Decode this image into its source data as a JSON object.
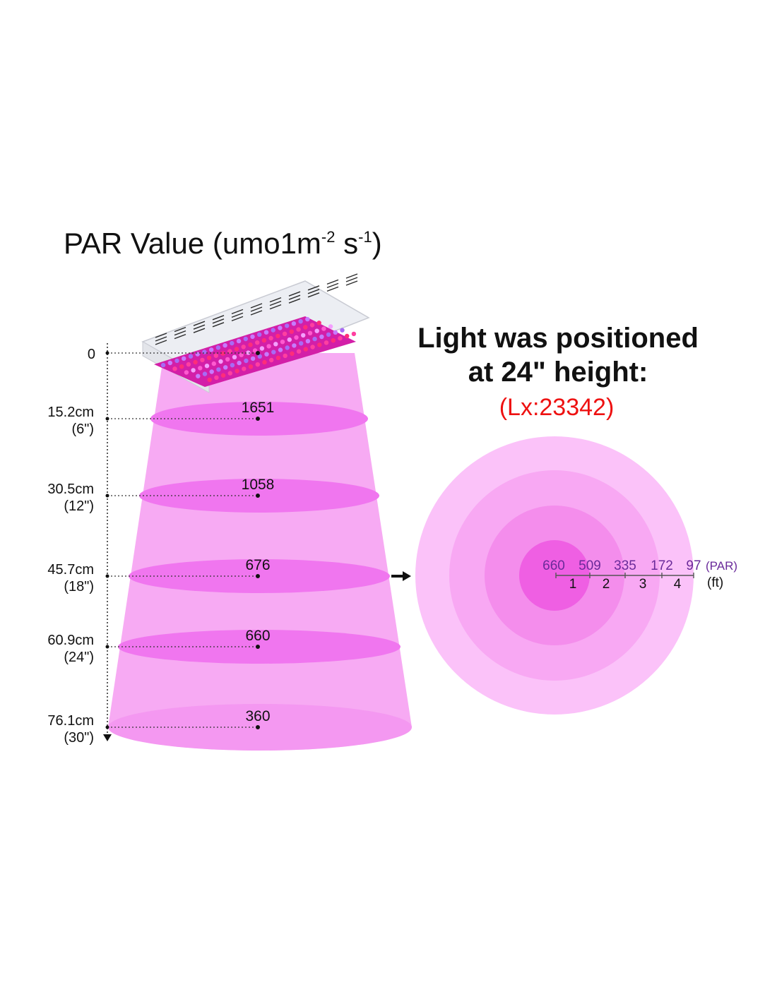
{
  "title": {
    "main": "PAR Value (umo1m",
    "sup1": "-2",
    "mid": " s",
    "sup2": "-1",
    "end": ")"
  },
  "heading": {
    "line1": "Light was positioned",
    "line2": "at 24\" height:",
    "lux": "(Lx:23342)"
  },
  "height_levels": [
    {
      "cm": "0",
      "inch": "",
      "par": ""
    },
    {
      "cm": "15.2cm",
      "inch": "(6\")",
      "par": "1651"
    },
    {
      "cm": "30.5cm",
      "inch": "(12\")",
      "par": "1058"
    },
    {
      "cm": "45.7cm",
      "inch": "(18\")",
      "par": "676"
    },
    {
      "cm": "60.9cm",
      "inch": "(24\")",
      "par": "660"
    },
    {
      "cm": "76.1cm",
      "inch": "(30\")",
      "par": "360"
    }
  ],
  "footprint": {
    "par_values": [
      "660",
      "509",
      "335",
      "172",
      "97"
    ],
    "par_unit": "(PAR)",
    "distances": [
      "1",
      "2",
      "3",
      "4"
    ],
    "distance_unit": "(ft)"
  },
  "colors": {
    "beam": "#f7aaf3",
    "disc": "#f076ef",
    "panel_body": "#f1f1f6",
    "led_field": "#d31fa8",
    "lux_text": "#ee1111",
    "ring_colors": [
      "#fbc2f9",
      "#f8a8f3",
      "#f48dec",
      "#f16fe6",
      "#ee4fe2"
    ]
  }
}
